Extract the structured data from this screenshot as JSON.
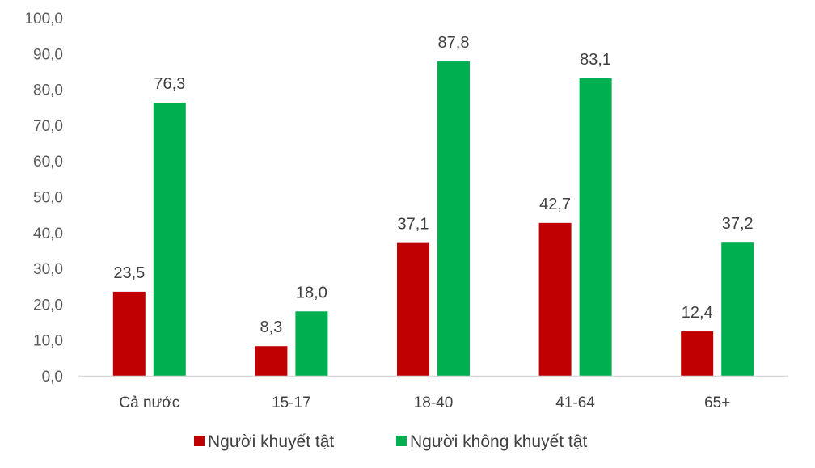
{
  "chart_data": {
    "type": "bar",
    "title": "",
    "xlabel": "",
    "ylabel": "",
    "categories": [
      "Cả nước",
      "15-17",
      "18-40",
      "41-64",
      "65+"
    ],
    "series": [
      {
        "name": "Người khuyết tật",
        "color": "#C00000",
        "values": [
          23.5,
          8.3,
          37.1,
          42.7,
          12.4
        ],
        "labels": [
          "23,5",
          "8,3",
          "37,1",
          "42,7",
          "12,4"
        ]
      },
      {
        "name": "Người không khuyết tật",
        "color": "#00B050",
        "values": [
          76.3,
          18.0,
          87.8,
          83.1,
          37.2
        ],
        "labels": [
          "76,3",
          "18,0",
          "87,8",
          "83,1",
          "37,2"
        ]
      }
    ],
    "ylim": [
      0,
      100
    ],
    "y_ticks": [
      0,
      10,
      20,
      30,
      40,
      50,
      60,
      70,
      80,
      90,
      100
    ],
    "y_tick_labels": [
      "0,0",
      "10,0",
      "20,0",
      "30,0",
      "40,0",
      "50,0",
      "60,0",
      "70,0",
      "80,0",
      "90,0",
      "100,0"
    ],
    "grid": false,
    "legend_position": "bottom-center"
  }
}
